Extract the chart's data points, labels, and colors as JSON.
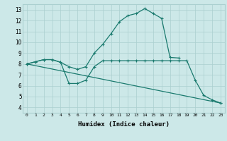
{
  "xlabel": "Humidex (Indice chaleur)",
  "xlim": [
    -0.5,
    23.5
  ],
  "ylim": [
    3.5,
    13.5
  ],
  "xticks": [
    0,
    1,
    2,
    3,
    4,
    5,
    6,
    7,
    8,
    9,
    10,
    11,
    12,
    13,
    14,
    15,
    16,
    17,
    18,
    19,
    20,
    21,
    22,
    23
  ],
  "yticks": [
    4,
    5,
    6,
    7,
    8,
    9,
    10,
    11,
    12,
    13
  ],
  "background_color": "#cce8e8",
  "line_color": "#1a7a6e",
  "grid_color": "#aacfcf",
  "lines": [
    {
      "x": [
        0,
        1,
        2,
        3,
        4,
        5,
        6,
        7,
        8,
        9,
        10,
        11,
        12,
        13,
        14,
        15,
        16,
        17,
        18
      ],
      "y": [
        8.0,
        8.2,
        8.4,
        8.4,
        8.15,
        7.75,
        7.5,
        7.75,
        9.0,
        9.8,
        10.8,
        11.9,
        12.45,
        12.65,
        13.1,
        12.65,
        12.2,
        8.6,
        8.55
      ]
    },
    {
      "x": [
        0,
        1,
        2,
        3,
        4,
        5,
        6,
        7,
        8,
        9,
        10,
        11,
        12,
        13,
        14,
        15,
        16,
        17,
        18,
        19,
        20,
        21,
        22,
        23
      ],
      "y": [
        8.0,
        8.2,
        8.4,
        8.4,
        8.15,
        6.2,
        6.2,
        6.5,
        7.75,
        8.3,
        8.3,
        8.3,
        8.3,
        8.3,
        8.3,
        8.3,
        8.3,
        8.3,
        8.3,
        8.3,
        6.5,
        5.1,
        4.7,
        4.4
      ]
    },
    {
      "x": [
        0,
        23
      ],
      "y": [
        8.0,
        4.4
      ]
    }
  ]
}
